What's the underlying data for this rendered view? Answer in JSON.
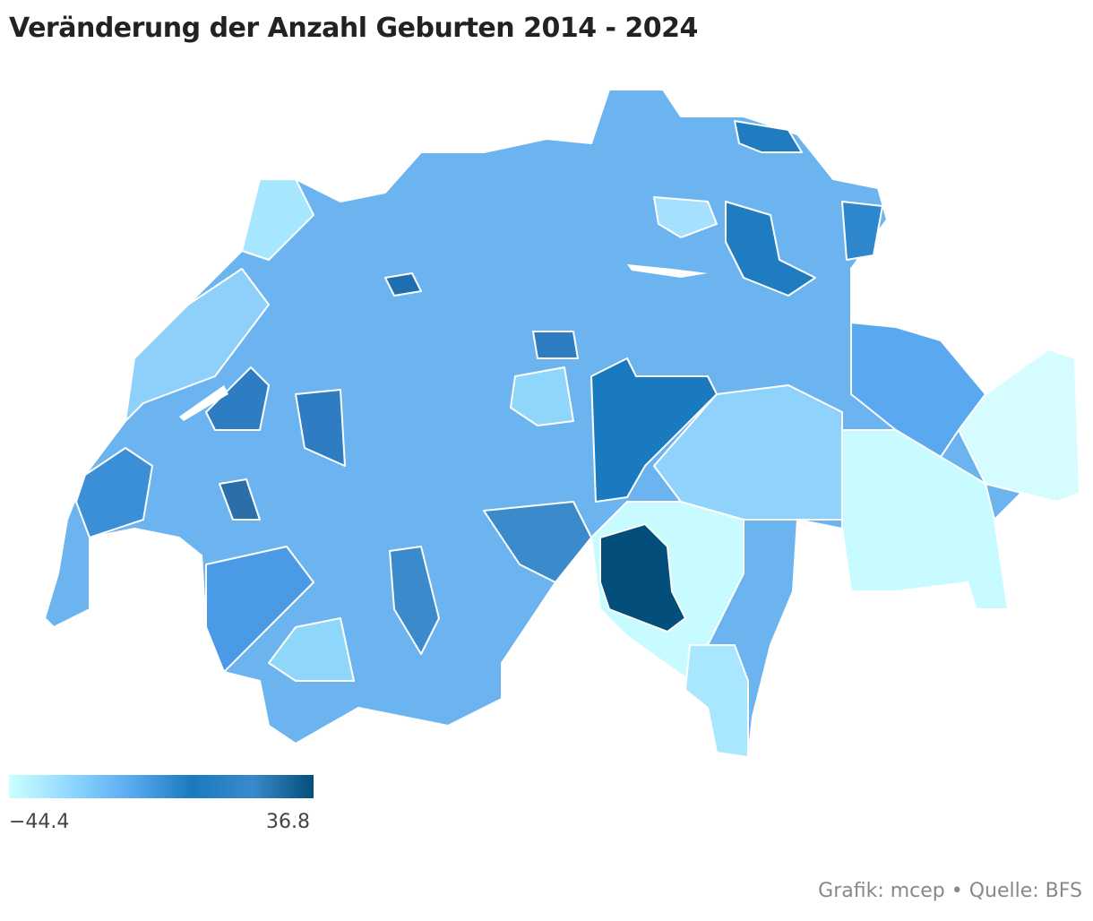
{
  "title": "Veränderung der Anzahl Geburten 2014 - 2024",
  "legend": {
    "min": {
      "value": -44.4,
      "label": "−44.4"
    },
    "max": {
      "value": 36.8,
      "label": "36.8"
    },
    "colors": [
      "#ccffff",
      "#8fd8ff",
      "#5aaaf0",
      "#1a7abf",
      "#3a8acc",
      "#034e7b"
    ]
  },
  "source": "Grafik: mcep • Quelle: BFS"
}
